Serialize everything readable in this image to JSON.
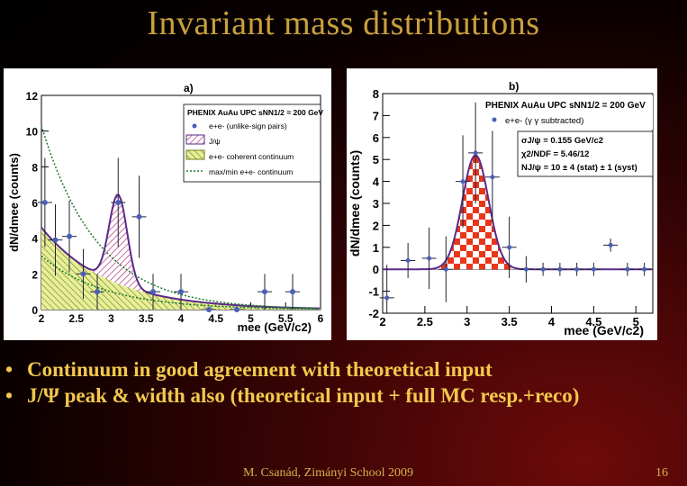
{
  "slide": {
    "title": "Invariant mass distributions",
    "bullets": [
      "Continuum in good agreement with theoretical input",
      "J/Ψ peak & width also (theoretical input + full MC resp.+reco)"
    ],
    "footer": "M. Csanád, Zimányi School 2009",
    "page_number": "16",
    "colors": {
      "background": "#2a0303",
      "title": "#c9a03c",
      "bullets": "#f2c94c"
    }
  },
  "chart_data": [
    {
      "type": "scatter",
      "panel_label": "a)",
      "ylabel": "dN/dmee (counts)",
      "xlabel": "mee (GeV/c2)",
      "xlim": [
        2,
        6
      ],
      "ylim": [
        0,
        12
      ],
      "x_ticks": [
        "2",
        "2.5",
        "3",
        "3.5",
        "4",
        "4.5",
        "5",
        "5.5",
        "6"
      ],
      "y_ticks": [
        "0",
        "2",
        "4",
        "6",
        "8",
        "10",
        "12"
      ],
      "legend": {
        "header": "PHENIX AuAu UPC sNN1/2 = 200 GeV",
        "entries": [
          "e+e- (unlike-sign pairs)",
          "J/ψ",
          "e+e- coherent continuum",
          "max/min e+e- continuum"
        ]
      },
      "series": [
        {
          "name": "e+e- (unlike-sign pairs)",
          "x": [
            2.05,
            2.2,
            2.4,
            2.6,
            2.8,
            3.1,
            3.4,
            3.6,
            4.0,
            4.4,
            4.8,
            5.2,
            5.6
          ],
          "y": [
            6.0,
            3.9,
            4.1,
            2.0,
            1.0,
            6.0,
            5.2,
            1.0,
            1.0,
            0.0,
            0.0,
            1.0,
            1.0
          ],
          "yerr": [
            2.5,
            2.0,
            2.0,
            1.4,
            1.0,
            2.5,
            2.3,
            1.0,
            1.0,
            0,
            0,
            1.0,
            1.0
          ]
        }
      ]
    },
    {
      "type": "scatter",
      "panel_label": "b)",
      "ylabel": "dN/dmee (counts)",
      "xlabel": "mee (GeV/c2)",
      "xlim": [
        2,
        5.2
      ],
      "ylim": [
        -2,
        8
      ],
      "x_ticks": [
        "2",
        "2.5",
        "3",
        "3.5",
        "4",
        "4.5",
        "5"
      ],
      "y_ticks": [
        "-2",
        "-1",
        "0",
        "1",
        "2",
        "3",
        "4",
        "5",
        "6",
        "7",
        "8"
      ],
      "legend": {
        "header": "PHENIX AuAu UPC sNN1/2 = 200 GeV",
        "entries": [
          "e+e- (γ γ subtracted)"
        ]
      },
      "fit_box": [
        "σJ/ψ = 0.155 GeV/c2",
        "χ2/NDF = 5.46/12",
        "NJ/ψ = 10 ± 4 (stat) ± 1 (syst)"
      ],
      "series": [
        {
          "name": "e+e- (γ γ subtracted)",
          "x": [
            2.05,
            2.3,
            2.55,
            2.75,
            2.95,
            3.1,
            3.3,
            3.5,
            3.7,
            3.9,
            4.1,
            4.3,
            4.5,
            4.7,
            4.9,
            5.1
          ],
          "y": [
            -1.3,
            0.4,
            0.5,
            0.0,
            4.0,
            5.3,
            4.2,
            1.0,
            0.0,
            0.0,
            0.0,
            0.0,
            0.0,
            1.1,
            0.0,
            0.0
          ],
          "yerr": [
            1.5,
            0.8,
            1.4,
            1.5,
            2.1,
            2.3,
            2.1,
            1.4,
            0.6,
            0.3,
            0.3,
            0.3,
            0.3,
            0.3,
            0.3,
            0.3
          ]
        }
      ]
    }
  ]
}
